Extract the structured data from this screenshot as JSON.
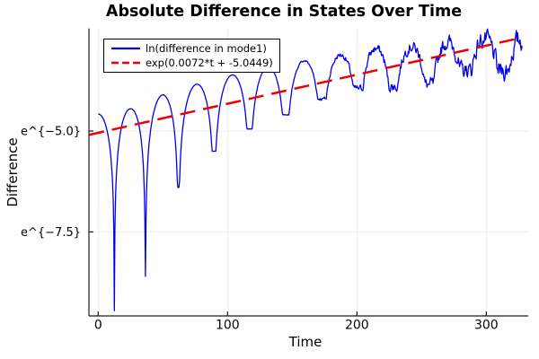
{
  "chart_data": {
    "type": "line",
    "title": "Absolute Difference in States Over Time",
    "xlabel": "Time",
    "ylabel": "Difference",
    "background": "#ffffff",
    "grid": true,
    "grid_color": "#ececec",
    "axis_color": "#1a1a1a",
    "legend_position": "top-left",
    "xlim": [
      -7.15,
      332.4
    ],
    "ylim_ln": [
      -9.58,
      -2.46
    ],
    "xticks": [
      0,
      100,
      200,
      300
    ],
    "xtick_labels": [
      "0",
      "100",
      "200",
      "300"
    ],
    "yticks": [
      {
        "value": -5.0,
        "label": "e^{−5.0}"
      },
      {
        "value": -7.5,
        "label": "e^{−7.5}"
      }
    ],
    "series": [
      {
        "name": "ln(difference in mode1)",
        "color": "#0000ee",
        "style": "solid",
        "t_range": [
          0,
          327.5
        ],
        "model": {
          "kind": "log-abs-oscillation",
          "cusp_times": [
            -13,
            12.5,
            36.5,
            62,
            89.5,
            117,
            145,
            173,
            201,
            228,
            256,
            284,
            313,
            341
          ],
          "cusp_depths_ln": [
            -9.45,
            -8.6,
            -6.4,
            -5.5,
            -4.95,
            -4.6,
            -4.2,
            -3.95,
            -3.9,
            -3.85,
            -3.5,
            -3.5
          ],
          "peak_envelope_ln": [
            [
              0,
              -4.58
            ],
            [
              25,
              -4.45
            ],
            [
              50,
              -4.1
            ],
            [
              75,
              -3.85
            ],
            [
              105,
              -3.6
            ],
            [
              133,
              -3.4
            ],
            [
              161,
              -3.25
            ],
            [
              190,
              -3.1
            ],
            [
              215,
              -2.95
            ],
            [
              243,
              -2.9
            ],
            [
              270,
              -2.8
            ],
            [
              300,
              -2.72
            ],
            [
              327,
              -2.73
            ]
          ],
          "noise_start_t": 140,
          "noise_amp_at_end_ln": 0.22
        }
      },
      {
        "name": "exp(0.0072*t + -5.0449)",
        "color": "#ee0000",
        "style": "dashed",
        "fit": {
          "slope": 0.0072,
          "intercept": -5.0449
        },
        "t_range": [
          -7,
          326
        ]
      }
    ]
  }
}
